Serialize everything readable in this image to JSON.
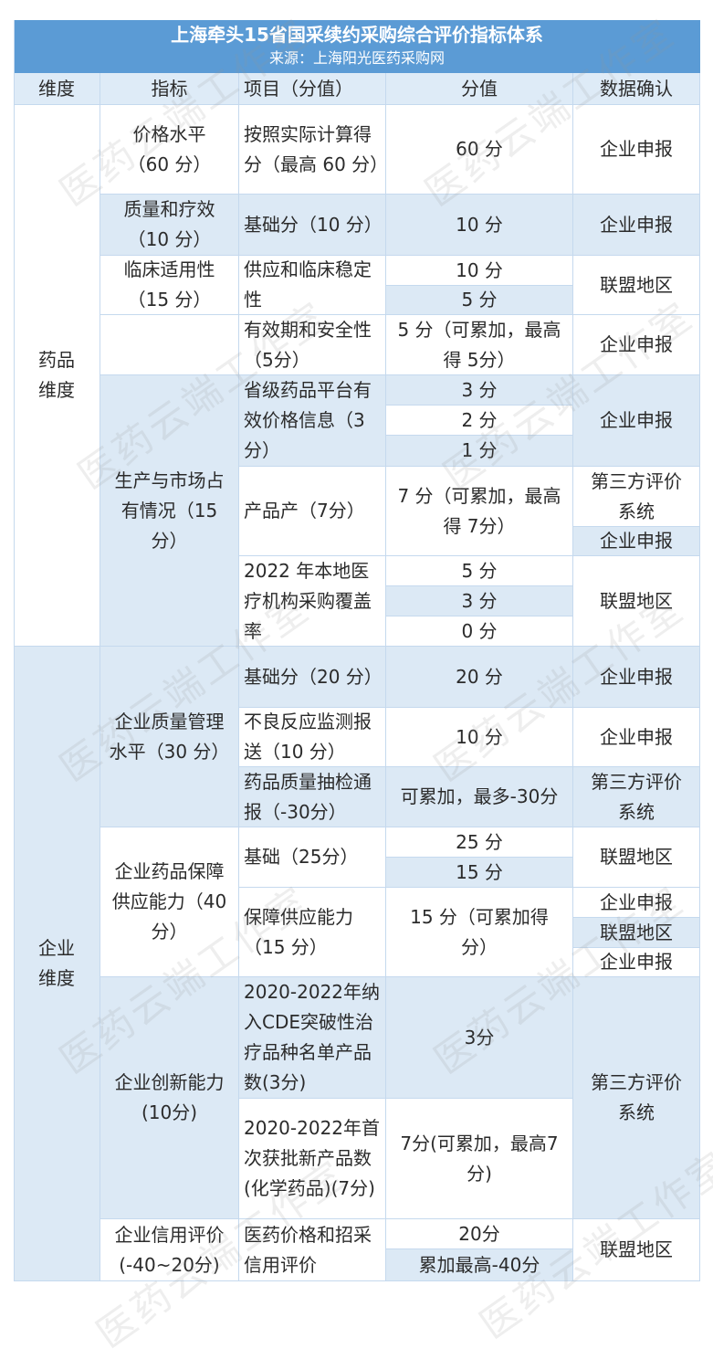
{
  "title": "上海牵头15省国采续约采购综合评价指标体系",
  "source": "来源：上海阳光医药采购网",
  "headers": [
    "维度",
    "指标",
    "项目（分值）",
    "分值",
    "数据确认"
  ],
  "watermark": "医药云端工作室",
  "colors": {
    "title_bg": "#5b9bd5",
    "header_bg": "#deebf7",
    "band_bg": "#dce9f5"
  },
  "drug": {
    "dimension": "药品维度",
    "price": {
      "indicator": "价格水平（60 分）",
      "item": "按照实际计算得分（最高 60 分）",
      "score": "60 分",
      "confirm": "企业申报"
    },
    "quality": {
      "indicator": "质量和疗效（10 分）",
      "item": "基础分（10 分）",
      "score": "10 分",
      "confirm": "企业申报"
    },
    "clinical": {
      "indicator": "临床适用性（15 分）",
      "item": "供应和临床稳定性",
      "scores": [
        "10 分",
        "5 分"
      ],
      "confirm": "联盟地区"
    },
    "validity": {
      "item": "有效期和安全性（5分）",
      "score": "5 分（可累加，最高得 5分）",
      "confirm": "企业申报"
    },
    "production": {
      "indicator": "生产与市场占有情况（15 分）",
      "platform": {
        "item": "省级药品平台有效价格信息（3分）",
        "scores": [
          "3 分",
          "2 分",
          "1 分"
        ],
        "confirm": "企业申报"
      },
      "product": {
        "item": "产品产（7分）",
        "score": "7 分（可累加，最高得 7分）",
        "confirms": [
          "第三方评价系统",
          "企业申报"
        ]
      },
      "coverage": {
        "item": "2022 年本地医疗机构采购覆盖率",
        "scores": [
          "5 分",
          "3 分",
          "0 分"
        ],
        "confirm": "联盟地区"
      }
    }
  },
  "enterprise": {
    "dimension": "企业维度",
    "qm": {
      "indicator": "企业质量管理水平（30 分）",
      "rows": [
        {
          "item": "基础分（20 分）",
          "score": "20 分",
          "confirm": "企业申报"
        },
        {
          "item": "不良反应监测报送（10 分）",
          "score": "10 分",
          "confirm": "企业申报"
        },
        {
          "item": "药品质量抽检通报（-30分）",
          "score": "可累加，最多-30分",
          "confirm": "第三方评价系统"
        }
      ]
    },
    "supply": {
      "indicator": "企业药品保障供应能力（40 分）",
      "base": {
        "item": "基础（25分）",
        "scores": [
          "25 分",
          "15 分"
        ],
        "confirm": "联盟地区"
      },
      "ability": {
        "item": "保障供应能力（15 分）",
        "score": "15 分（可累加得分）",
        "confirms": [
          "企业申报",
          "联盟地区",
          "企业申报"
        ]
      }
    },
    "innovation": {
      "indicator": "企业创新能力(10分)",
      "rows": [
        {
          "item": "2020-2022年纳入CDE突破性治疗品种名单产品数(3分)",
          "score": "3分"
        },
        {
          "item": "2020-2022年首次获批新产品数(化学药品)(7分)",
          "score": "7分(可累加，最高7分)"
        }
      ],
      "confirm": "第三方评价系统"
    },
    "credit": {
      "indicator": "企业信用评价(-40~20分)",
      "item": "医药价格和招采信用评价",
      "scores": [
        "20分",
        "累加最高-40分"
      ],
      "confirm": "联盟地区"
    }
  }
}
